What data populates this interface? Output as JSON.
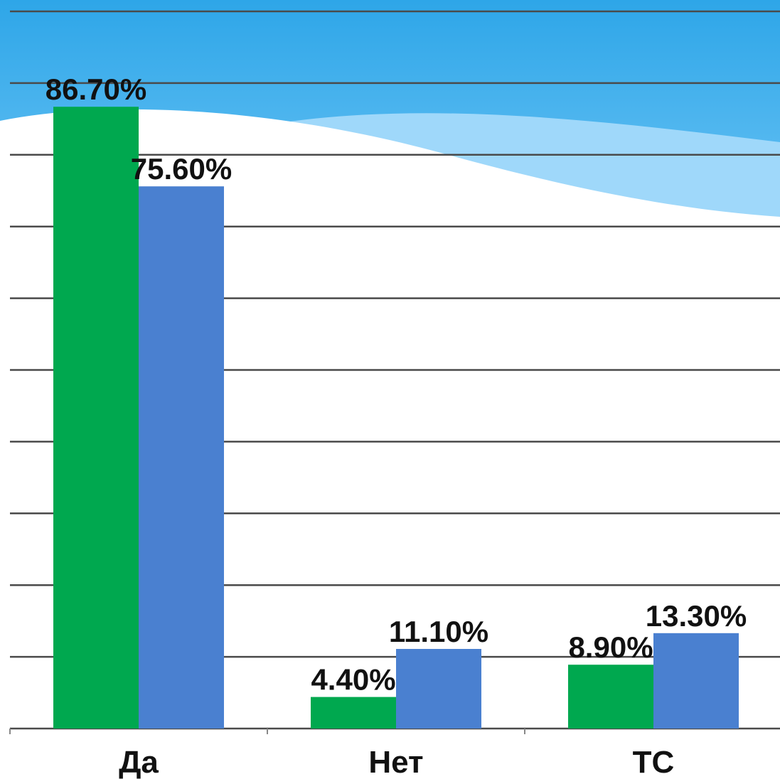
{
  "chart_data": {
    "type": "bar",
    "categories": [
      "Да",
      "Нет",
      "ТС"
    ],
    "series": [
      {
        "color": "#00a84f",
        "values": [
          86.7,
          4.4,
          8.9
        ],
        "value_labels": [
          "86.70%",
          "4.40%",
          "8.90%"
        ]
      },
      {
        "color": "#4a80d0",
        "values": [
          75.6,
          11.1,
          13.3
        ],
        "value_labels": [
          "75.60%",
          "11.10%",
          "13.30%"
        ]
      }
    ],
    "ylim": [
      0,
      100
    ],
    "yticks": [
      0,
      10,
      20,
      30,
      40,
      50,
      60,
      70,
      80,
      90,
      100
    ],
    "grid": true
  }
}
